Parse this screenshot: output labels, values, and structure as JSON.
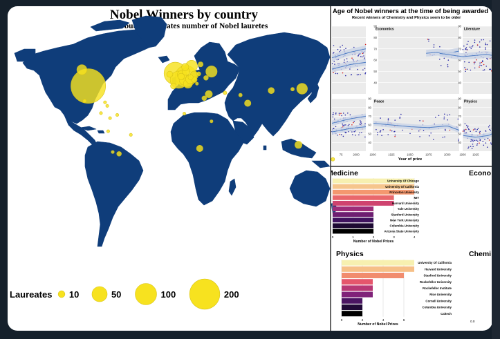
{
  "chart_data": [
    {
      "type": "bubble-map",
      "title": "Nobel Winners by country",
      "subtitle": "Size of bubble indicates number of Nobel lauretes",
      "legend": {
        "title": "Laureates",
        "position": "bottom-left",
        "sizes": [
          10,
          50,
          100,
          200
        ]
      },
      "bubbles": [
        {
          "lon": -98,
          "lat": 40,
          "value": 280
        },
        {
          "lon": -105,
          "lat": 58,
          "value": 24
        },
        {
          "lon": -2,
          "lat": 54,
          "value": 116
        },
        {
          "lon": 10,
          "lat": 51,
          "value": 105
        },
        {
          "lon": 2,
          "lat": 47,
          "value": 70
        },
        {
          "lon": 16,
          "lat": 62,
          "value": 32
        },
        {
          "lon": 5.5,
          "lat": 52.3,
          "value": 20
        },
        {
          "lon": 8.2,
          "lat": 46.8,
          "value": 26
        },
        {
          "lon": 38,
          "lat": 56,
          "value": 30
        },
        {
          "lon": 12,
          "lat": 42.5,
          "value": 19
        },
        {
          "lon": 14.5,
          "lat": 47.5,
          "value": 19
        },
        {
          "lon": 19,
          "lat": 52,
          "value": 15
        },
        {
          "lon": 10,
          "lat": 56,
          "value": 13
        },
        {
          "lon": 9,
          "lat": 61,
          "value": 12
        },
        {
          "lon": -8,
          "lat": 53,
          "value": 9
        },
        {
          "lon": -4,
          "lat": 40,
          "value": 8
        },
        {
          "lon": 4.5,
          "lat": 50.5,
          "value": 10
        },
        {
          "lon": 26,
          "lat": 64,
          "value": 6
        },
        {
          "lon": 19,
          "lat": 47,
          "value": 8
        },
        {
          "lon": 15,
          "lat": 49.8,
          "value": 6
        },
        {
          "lon": 35,
          "lat": 31,
          "value": 12
        },
        {
          "lon": 78,
          "lat": 21,
          "value": 10
        },
        {
          "lon": 104,
          "lat": 35,
          "value": 9
        },
        {
          "lon": 138,
          "lat": 37,
          "value": 27
        },
        {
          "lon": 127.5,
          "lat": 36.5,
          "value": 3
        },
        {
          "lon": 24,
          "lat": 53.5,
          "value": 4
        },
        {
          "lon": 32,
          "lat": 49,
          "value": 5
        },
        {
          "lon": 30,
          "lat": 26.5,
          "value": 5
        },
        {
          "lon": 53,
          "lat": 32.5,
          "value": 3
        },
        {
          "lon": 70,
          "lat": 30,
          "value": 3
        },
        {
          "lon": 25,
          "lat": -29,
          "value": 10
        },
        {
          "lon": -64,
          "lat": -35,
          "value": 5
        },
        {
          "lon": -71,
          "lat": -33,
          "value": 2
        },
        {
          "lon": -102,
          "lat": 23.5,
          "value": 3
        },
        {
          "lon": -74,
          "lat": 4.5,
          "value": 2
        },
        {
          "lon": -51,
          "lat": -14,
          "value": 2
        },
        {
          "lon": -76,
          "lat": -10,
          "value": 2
        },
        {
          "lon": 134,
          "lat": -25,
          "value": 12
        },
        {
          "lon": 172,
          "lat": -41,
          "value": 3
        },
        {
          "lon": 8,
          "lat": 9.5,
          "value": 2
        },
        {
          "lon": 38,
          "lat": 1,
          "value": 2
        },
        {
          "lon": -84,
          "lat": 10,
          "value": 1
        },
        {
          "lon": -66,
          "lat": 8,
          "value": 1
        },
        {
          "lon": 22,
          "lat": 42.6,
          "value": 2
        },
        {
          "lon": -79.5,
          "lat": 22,
          "value": 1
        },
        {
          "lon": -77,
          "lat": 18,
          "value": 1
        }
      ]
    },
    {
      "type": "scatter",
      "title": "Age of Nobel winners at the time of being awarded",
      "subtitle": "Recent winners of Chemistry and Physics seem to be older",
      "xlabel": "Year of prize",
      "ylabel": "",
      "panels_visible": [
        "Economics",
        "Literature",
        "Peace",
        "Physics"
      ],
      "ylim": [
        30,
        90
      ],
      "yticks": [
        30,
        40,
        50,
        60,
        70,
        80,
        90
      ],
      "x_ticks": [
        "1900",
        "1925",
        "1950",
        "1975",
        "2000"
      ],
      "peace_trend": [
        [
          1901,
          62
        ],
        [
          1925,
          60
        ],
        [
          1950,
          58
        ],
        [
          1975,
          57
        ],
        [
          2000,
          59
        ],
        [
          2016,
          54
        ]
      ],
      "physics_trend": [
        [
          1901,
          48
        ],
        [
          1925,
          46
        ],
        [
          1950,
          48
        ],
        [
          1975,
          55
        ],
        [
          2000,
          63
        ],
        [
          2016,
          66
        ]
      ],
      "economics_trend": [
        [
          1969,
          66
        ],
        [
          1985,
          67
        ],
        [
          2000,
          66
        ],
        [
          2016,
          68
        ]
      ],
      "literature_trend": [
        [
          1901,
          66
        ],
        [
          1950,
          63
        ],
        [
          2000,
          65
        ],
        [
          2016,
          64
        ]
      ],
      "left_partial_trend": [
        [
          1960,
          62
        ],
        [
          1990,
          67
        ],
        [
          2016,
          70
        ]
      ],
      "left_partial_lower_trend": [
        [
          1960,
          52
        ],
        [
          1990,
          56
        ],
        [
          2016,
          58
        ]
      ]
    },
    {
      "type": "bar",
      "title": "Medicine",
      "categories": [
        "University Of Chicago",
        "University Of California",
        "Princeton University",
        "MIT",
        "Harvard University",
        "Yale University",
        "Stanford University",
        "New York University",
        "Columbia University",
        "Arizona State University"
      ],
      "values": [
        4,
        4,
        4,
        3,
        3,
        2,
        2,
        2,
        2,
        2
      ],
      "xlabel": "Number of Nobel Prizes",
      "xticks": [
        0,
        1,
        2,
        3,
        4
      ]
    },
    {
      "type": "bar",
      "title": "Physics",
      "categories": [
        "University Of California",
        "Harvard University",
        "Stanford University",
        "Rockefeller University",
        "Rockefeller Institute",
        "Rice University",
        "Cornell University",
        "Columbia University",
        "Caltech"
      ],
      "values": [
        7,
        7,
        6,
        3,
        3,
        3,
        2,
        2,
        2
      ],
      "xlabel": "Number of Nobel Prizes",
      "xticks": [
        0,
        2,
        4,
        6
      ]
    },
    {
      "type": "bar",
      "title": "Econo",
      "categories": [],
      "values": []
    },
    {
      "type": "bar",
      "title": "Chemi",
      "categories": [],
      "values": [],
      "xticks_visible": [
        "0.0"
      ]
    }
  ],
  "ui": {
    "laureates_label": "Laureates",
    "legend_values": [
      "10",
      "50",
      "100",
      "200"
    ],
    "colors": {
      "ocean": "#ffffff",
      "land": "#0f3d7a",
      "bubble": "#f7e21f",
      "bubble_edge": "#d8c41a",
      "panel_bg": "#ebebeb",
      "trend": "#4d7cc4",
      "ribbon": "#c9d3e6"
    }
  }
}
